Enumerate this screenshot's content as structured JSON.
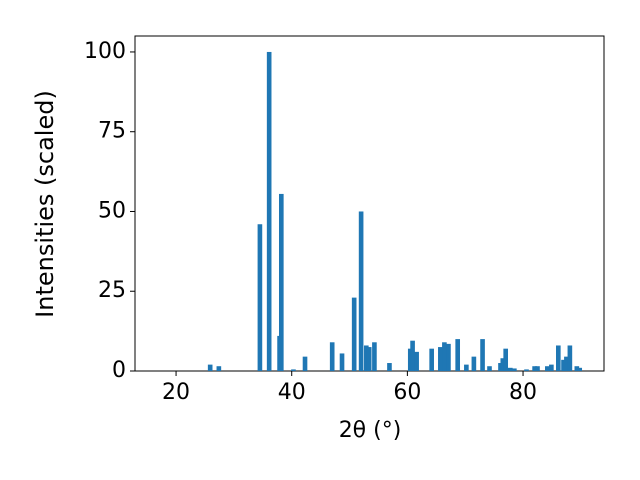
{
  "chart_data": {
    "type": "bar",
    "xlabel": "2θ (°)",
    "ylabel": "Intensities (scaled)",
    "x": [
      25.9,
      27.4,
      34.5,
      36.1,
      37.9,
      38.2,
      40.3,
      42.3,
      47.0,
      48.7,
      50.8,
      52.0,
      52.9,
      53.4,
      54.3,
      56.9,
      60.5,
      60.9,
      61.6,
      64.2,
      65.7,
      66.4,
      67.1,
      68.7,
      70.2,
      71.5,
      73.0,
      74.2,
      76.1,
      76.5,
      77.0,
      77.8,
      78.5,
      80.6,
      82.0,
      82.5,
      84.2,
      84.9,
      86.1,
      87.0,
      87.5,
      88.1,
      89.3,
      89.8
    ],
    "values": [
      2,
      1.5,
      46,
      100,
      11,
      55.5,
      0.5,
      4.5,
      9,
      5.5,
      23,
      50,
      8,
      7.5,
      9,
      2.5,
      7,
      9.5,
      6,
      7,
      7.5,
      9,
      8.5,
      10,
      2,
      4.5,
      10,
      1.5,
      2.5,
      4,
      7,
      1,
      0.8,
      0.5,
      1.5,
      1.5,
      1.5,
      2,
      8,
      3.5,
      4.5,
      8,
      1.5,
      1
    ],
    "bar_width": 0.8,
    "color": "#1f77b4",
    "xlim": [
      12.9,
      94.0
    ],
    "ylim": [
      0,
      105
    ],
    "xticks": [
      20,
      40,
      60,
      80
    ],
    "yticks": [
      0,
      25,
      50,
      75,
      100
    ]
  }
}
